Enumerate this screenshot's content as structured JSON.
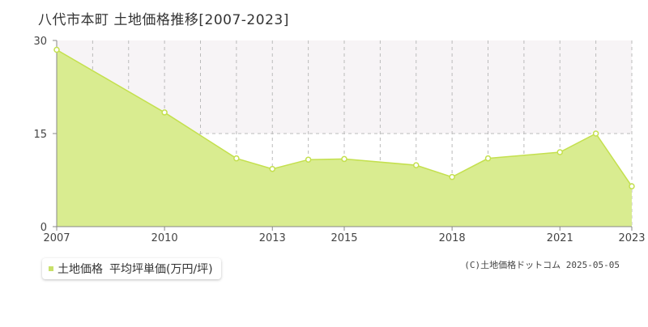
{
  "title": "八代市本町 土地価格推移[2007-2023]",
  "legend": {
    "series_label": "土地価格",
    "unit_label": "平均坪単価(万円/坪)",
    "swatch_color": "#c8e06a"
  },
  "copyright": "(C)土地価格ドットコム 2025-05-05",
  "colors": {
    "area_fill": "#d9ec90",
    "line": "#c4e04e",
    "marker_fill": "#ffffff",
    "grid": "#bbbbbb",
    "band": "#f7f4f6"
  },
  "chart_data": {
    "type": "area",
    "x": [
      2007,
      2008,
      2009,
      2010,
      2011,
      2012,
      2013,
      2014,
      2015,
      2016,
      2017,
      2018,
      2019,
      2020,
      2021,
      2022,
      2023
    ],
    "series": [
      {
        "values": [
          null,
          null,
          null,
          null,
          null,
          null,
          null,
          null,
          null,
          null,
          null,
          null,
          null,
          null,
          null,
          null,
          null
        ]
      }
    ],
    "points": [
      {
        "x": 2007,
        "y": 28.5
      },
      {
        "x": 2010,
        "y": 18.4
      },
      {
        "x": 2012,
        "y": 11.0
      },
      {
        "x": 2013,
        "y": 9.3
      },
      {
        "x": 2014,
        "y": 10.8
      },
      {
        "x": 2015,
        "y": 10.9
      },
      {
        "x": 2017,
        "y": 9.9
      },
      {
        "x": 2018,
        "y": 8.0
      },
      {
        "x": 2019,
        "y": 11.0
      },
      {
        "x": 2021,
        "y": 12.0
      },
      {
        "x": 2022,
        "y": 15.0
      },
      {
        "x": 2023,
        "y": 6.5
      }
    ],
    "xlim": [
      2007,
      2023
    ],
    "ylim": [
      0,
      30
    ],
    "y_ticks": [
      0,
      15,
      30
    ],
    "x_tick_labels": [
      2007,
      2010,
      2013,
      2015,
      2018,
      2021,
      2023
    ],
    "x_gridlines": [
      2007,
      2008,
      2009,
      2010,
      2011,
      2012,
      2013,
      2014,
      2015,
      2016,
      2017,
      2018,
      2019,
      2020,
      2021,
      2022,
      2023
    ],
    "grid": true,
    "legend_position": "bottom-left"
  }
}
